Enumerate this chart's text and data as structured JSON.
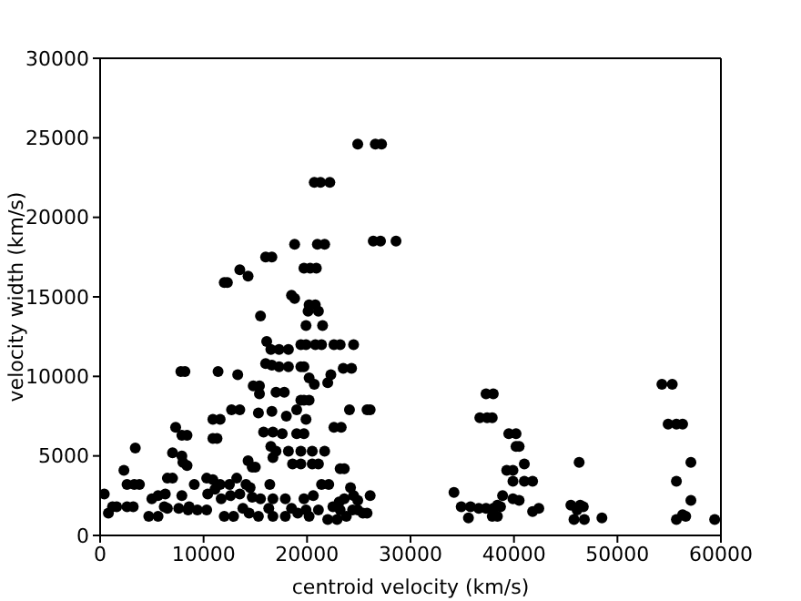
{
  "chart_data": {
    "type": "scatter",
    "xlabel": "centroid velocity (km/s)",
    "ylabel": "velocity width (km/s)",
    "xlim": [
      0,
      60000
    ],
    "xticks": [
      0,
      10000,
      20000,
      30000,
      40000,
      50000,
      60000
    ],
    "ylim": [
      0,
      30000
    ],
    "yticks": [
      0,
      5000,
      10000,
      15000,
      20000,
      25000,
      30000
    ],
    "grid": false,
    "legend": false,
    "marker": "circle",
    "series": [
      {
        "color": "#000000",
        "x": [
          24900,
          26600,
          27200,
          20700,
          21300,
          22200,
          18800,
          21000,
          21700,
          26400,
          27100,
          28600,
          16000,
          16600,
          19700,
          20300,
          20900,
          12000,
          12300,
          13500,
          14300,
          18500,
          18800,
          20200,
          20800,
          20100,
          21100,
          15500,
          19900,
          21500,
          16100,
          16500,
          17300,
          18200,
          19400,
          19900,
          20800,
          21400,
          22600,
          23200,
          24500,
          16000,
          16600,
          17300,
          18200,
          19400,
          19700,
          7800,
          8200,
          11400,
          13300,
          20700,
          20200,
          22300,
          22000,
          23500,
          24300,
          14800,
          15400,
          15400,
          17000,
          17800,
          19400,
          19700,
          20200,
          19000,
          12700,
          13500,
          15300,
          16600,
          18000,
          19900,
          24100,
          25800,
          26100,
          10900,
          11600,
          7300,
          7900,
          8400,
          15800,
          16700,
          17600,
          19000,
          19700,
          22600,
          23300,
          10900,
          11300,
          3400,
          16500,
          17000,
          18200,
          19400,
          20500,
          21700,
          7000,
          7900,
          8000,
          8400,
          2300,
          14300,
          14700,
          15000,
          16700,
          18600,
          19400,
          20500,
          21100,
          23200,
          23600,
          6500,
          7000,
          10300,
          10900,
          9100,
          11600,
          12500,
          13200,
          2600,
          3300,
          3800,
          14100,
          14500,
          16400,
          21400,
          22100,
          400,
          24200,
          24500,
          26100,
          5000,
          5600,
          6300,
          7900,
          10400,
          11100,
          11700,
          12600,
          13500,
          14700,
          15500,
          16700,
          17900,
          19700,
          20600,
          23100,
          23600,
          24900,
          1200,
          1600,
          3200,
          2600,
          6200,
          8600,
          9400,
          10300,
          13800,
          16300,
          18500,
          19900,
          21100,
          22500,
          23200,
          24400,
          24900,
          800,
          4700,
          5600,
          6500,
          7600,
          8500,
          12000,
          12900,
          14400,
          15300,
          16700,
          17900,
          19100,
          20200,
          22000,
          22900,
          23800,
          25400,
          25800,
          34200,
          34900,
          35800,
          36600,
          37300,
          38000,
          38400,
          38700,
          35600,
          37900,
          38400,
          37300,
          38000,
          36700,
          37400,
          37900,
          39500,
          40200,
          40200,
          40500,
          41000,
          39300,
          39900,
          39900,
          41000,
          41800,
          38900,
          39900,
          40500,
          41800,
          42400,
          45500,
          46400,
          46700,
          46100,
          45800,
          46800,
          46300,
          48500,
          54300,
          55300,
          54900,
          55700,
          56300,
          57100,
          55700,
          57100,
          55700,
          56300,
          56600,
          59400
        ],
        "values": [
          24600,
          24600,
          24600,
          22200,
          22200,
          22200,
          18300,
          18300,
          18300,
          18500,
          18500,
          18500,
          17500,
          17500,
          16800,
          16800,
          16800,
          15900,
          15900,
          16700,
          16300,
          15100,
          14900,
          14500,
          14500,
          14100,
          14100,
          13800,
          13200,
          13200,
          12200,
          11700,
          11700,
          11700,
          12000,
          12000,
          12000,
          12000,
          12000,
          12000,
          12000,
          10800,
          10700,
          10600,
          10600,
          10600,
          10600,
          10300,
          10300,
          10300,
          10100,
          9500,
          9900,
          10100,
          9600,
          10500,
          10500,
          9400,
          9400,
          8900,
          9000,
          9000,
          8500,
          8500,
          8500,
          7900,
          7900,
          7900,
          7700,
          7800,
          7500,
          7300,
          7900,
          7900,
          7900,
          7300,
          7300,
          6800,
          6300,
          6300,
          6500,
          6500,
          6400,
          6400,
          6400,
          6800,
          6800,
          6100,
          6100,
          5500,
          5600,
          5300,
          5300,
          5300,
          5300,
          5300,
          5200,
          5000,
          4600,
          4400,
          4100,
          4700,
          4300,
          4300,
          4900,
          4500,
          4500,
          4500,
          4500,
          4200,
          4200,
          3600,
          3600,
          3600,
          3500,
          3200,
          3200,
          3200,
          3600,
          3200,
          3200,
          3200,
          3200,
          3000,
          3200,
          3200,
          3200,
          2600,
          3000,
          2500,
          2500,
          2300,
          2500,
          2600,
          2500,
          2600,
          2900,
          2300,
          2500,
          2600,
          2400,
          2300,
          2300,
          2300,
          2300,
          2500,
          2100,
          2300,
          2200,
          1800,
          1800,
          1800,
          1800,
          1800,
          1800,
          1600,
          1600,
          1700,
          1700,
          1700,
          1600,
          1600,
          1800,
          1600,
          1600,
          1600,
          1400,
          1200,
          1200,
          1700,
          1700,
          1600,
          1200,
          1200,
          1400,
          1200,
          1200,
          1200,
          1400,
          1200,
          1000,
          1000,
          1200,
          1400,
          1400,
          2700,
          1800,
          1800,
          1700,
          1700,
          1700,
          1900,
          1800,
          1100,
          1200,
          1200,
          8900,
          8900,
          7400,
          7400,
          7400,
          6400,
          6400,
          5600,
          5600,
          4500,
          4100,
          4100,
          3400,
          3400,
          3400,
          2500,
          2300,
          2200,
          1500,
          1700,
          1900,
          1900,
          1800,
          1600,
          1000,
          1000,
          4600,
          1100,
          9500,
          9500,
          7000,
          7000,
          7000,
          4600,
          3400,
          2200,
          1000,
          1300,
          1200,
          1000
        ]
      }
    ]
  }
}
